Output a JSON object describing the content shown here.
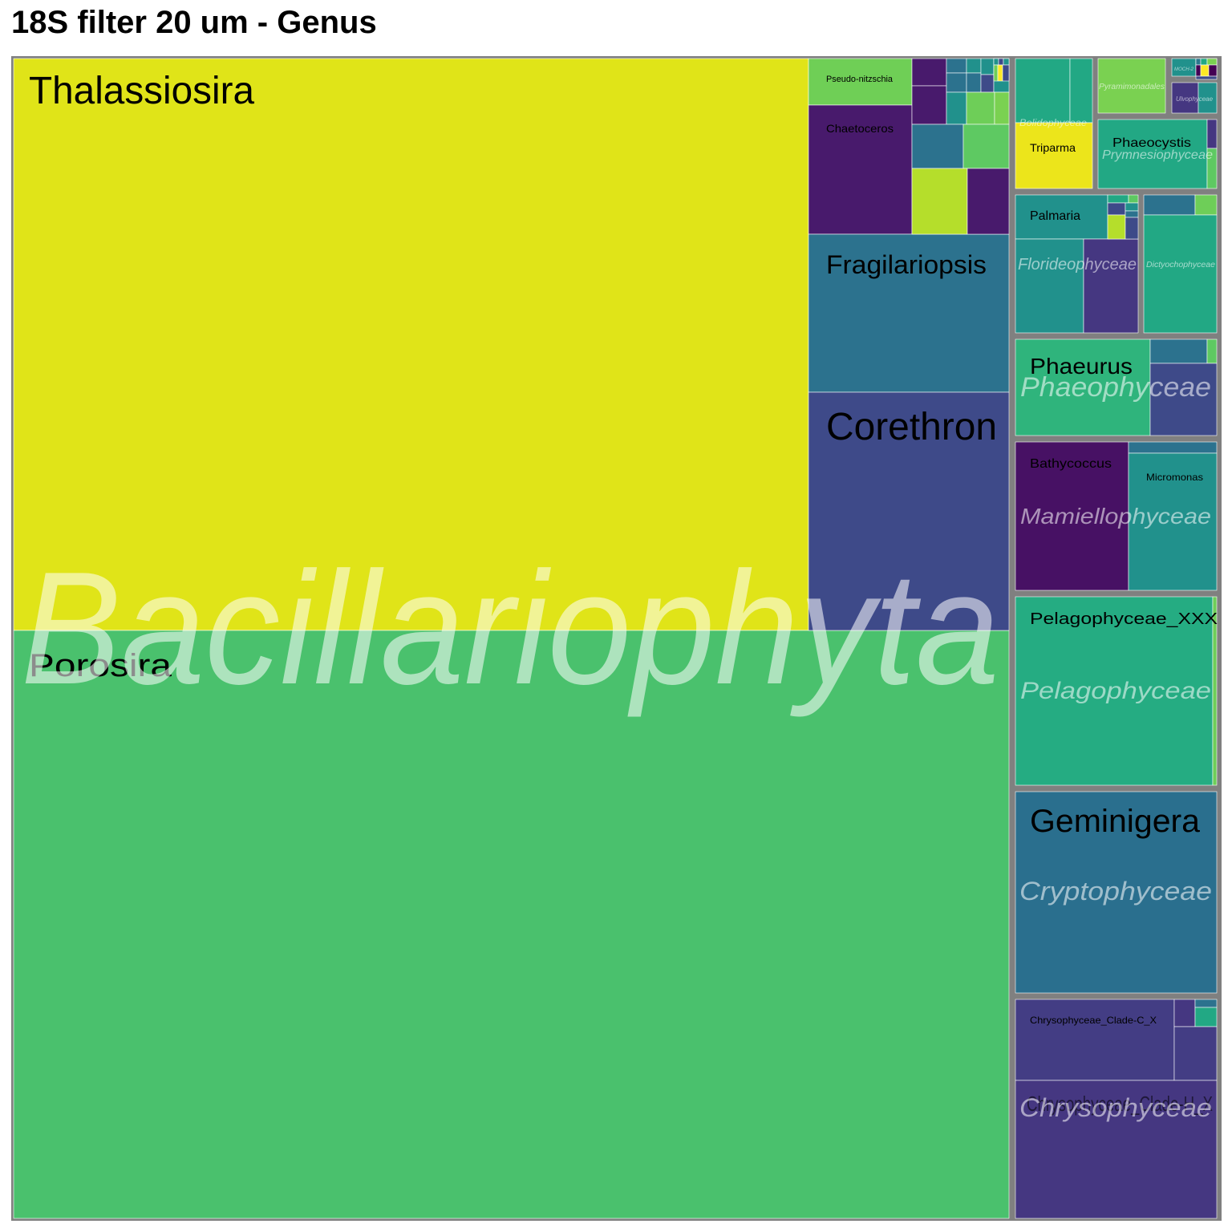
{
  "chart_data": {
    "type": "treemap",
    "title": "18S filter 20 um - Genus",
    "groups": [
      {
        "name": "Bacillariophyta",
        "genera": [
          {
            "name": "Thalassiosira",
            "color": "#e0e418"
          },
          {
            "name": "Porosira",
            "color": "#4ac16d"
          },
          {
            "name": "Pseudo-nitzschia",
            "color": "#6fcf56"
          },
          {
            "name": "Chaetoceros",
            "color": "#481a6c"
          },
          {
            "name": "Fragilariopsis",
            "color": "#2c728e"
          },
          {
            "name": "Corethron",
            "color": "#3e4a89"
          }
        ]
      },
      {
        "name": "Bolidophyceae",
        "genera": [
          {
            "name": "Triparma",
            "color": "#ece51b"
          }
        ]
      },
      {
        "name": "Pyramimonadales",
        "genera": []
      },
      {
        "name": "MOCH-2",
        "genera": []
      },
      {
        "name": "Ulvophyceae",
        "genera": []
      },
      {
        "name": "Prymnesiophyceae",
        "genera": [
          {
            "name": "Phaeocystis",
            "color": "#22a884"
          }
        ]
      },
      {
        "name": "Florideophyceae",
        "genera": [
          {
            "name": "Palmaria",
            "color": "#21918c"
          }
        ]
      },
      {
        "name": "Dictyochophyceae",
        "genera": []
      },
      {
        "name": "Phaeophyceae",
        "genera": [
          {
            "name": "Phaeurus",
            "color": "#2fb47c"
          }
        ]
      },
      {
        "name": "Mamiellophyceae",
        "genera": [
          {
            "name": "Bathycoccus",
            "color": "#471164"
          },
          {
            "name": "Micromonas",
            "color": "#21918c"
          }
        ]
      },
      {
        "name": "Pelagophyceae",
        "genera": [
          {
            "name": "Pelagophyceae_XXX",
            "color": "#25ac82"
          }
        ]
      },
      {
        "name": "Cryptophyceae",
        "genera": [
          {
            "name": "Geminigera",
            "color": "#2a6f8e"
          }
        ]
      },
      {
        "name": "Chrysophyceae",
        "genera": [
          {
            "name": "Chrysophyceae_Clade-C_X",
            "color": "#433d84"
          },
          {
            "name": "Chrysophyceae_Clade-H_X",
            "color": "#453781"
          }
        ]
      }
    ]
  }
}
